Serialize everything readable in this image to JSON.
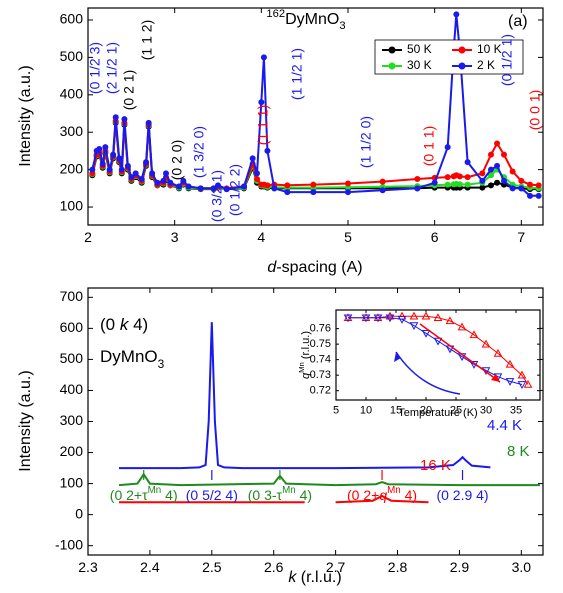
{
  "chart_data": [
    {
      "type": "line",
      "panel_label": "(a)",
      "title_parts": [
        "162",
        "DyMnO",
        "3"
      ],
      "ylabel": "Intensity (a.u.)",
      "xlabel_parts": [
        "d",
        "-spacing (A)"
      ],
      "xlim": [
        2,
        7.25
      ],
      "xticks": [
        2,
        3,
        4,
        5,
        6,
        7
      ],
      "ylim": [
        52,
        632
      ],
      "yticks": [
        100,
        200,
        300,
        400,
        500,
        600
      ],
      "x": [
        2.05,
        2.1,
        2.13,
        2.17,
        2.2,
        2.25,
        2.29,
        2.32,
        2.36,
        2.39,
        2.42,
        2.46,
        2.5,
        2.55,
        2.62,
        2.67,
        2.7,
        2.74,
        2.8,
        2.87,
        2.9,
        2.95,
        3.05,
        3.1,
        3.16,
        3.3,
        3.45,
        3.5,
        3.6,
        3.8,
        3.9,
        3.95,
        4.0,
        4.03,
        4.07,
        4.15,
        4.3,
        4.6,
        5.0,
        5.4,
        5.8,
        6.0,
        6.15,
        6.22,
        6.25,
        6.29,
        6.38,
        6.55,
        6.65,
        6.72,
        6.8,
        6.9,
        7.0,
        7.1,
        7.2
      ],
      "series": [
        {
          "name": "50 K",
          "color": "#000000",
          "values": [
            185,
            235,
            240,
            205,
            245,
            190,
            230,
            325,
            220,
            190,
            320,
            200,
            170,
            180,
            165,
            210,
            315,
            180,
            158,
            160,
            172,
            158,
            150,
            160,
            150,
            148,
            148,
            152,
            148,
            150,
            205,
            165,
            155,
            155,
            152,
            150,
            150,
            150,
            150,
            150,
            150,
            152,
            152,
            152,
            152,
            152,
            152,
            152,
            158,
            165,
            160,
            152,
            150,
            148,
            148
          ]
        },
        {
          "name": "10 K",
          "color": "#ff0000",
          "values": [
            190,
            240,
            245,
            210,
            250,
            195,
            235,
            330,
            225,
            195,
            325,
            205,
            175,
            185,
            170,
            215,
            320,
            185,
            160,
            165,
            180,
            160,
            155,
            165,
            155,
            150,
            150,
            155,
            150,
            155,
            215,
            175,
            160,
            160,
            158,
            160,
            158,
            160,
            163,
            168,
            175,
            178,
            180,
            182,
            185,
            182,
            180,
            190,
            240,
            270,
            240,
            195,
            170,
            160,
            158
          ]
        },
        {
          "name": "30 K",
          "color": "#22dd22",
          "values": [
            188,
            238,
            243,
            208,
            248,
            193,
            233,
            328,
            223,
            193,
            323,
            203,
            173,
            183,
            168,
            213,
            318,
            183,
            159,
            163,
            176,
            159,
            152,
            162,
            152,
            149,
            149,
            153,
            149,
            152,
            210,
            170,
            158,
            157,
            154,
            153,
            152,
            152,
            153,
            154,
            156,
            158,
            160,
            161,
            162,
            161,
            160,
            165,
            185,
            200,
            180,
            160,
            155,
            152,
            150
          ]
        },
        {
          "name": "2 K",
          "color": "#1a1aee",
          "values": [
            200,
            250,
            255,
            215,
            260,
            200,
            240,
            340,
            230,
            200,
            335,
            210,
            180,
            190,
            175,
            220,
            325,
            190,
            165,
            170,
            190,
            165,
            155,
            170,
            155,
            150,
            150,
            158,
            148,
            155,
            230,
            190,
            380,
            500,
            250,
            150,
            140,
            140,
            140,
            145,
            150,
            165,
            260,
            520,
            615,
            520,
            220,
            170,
            200,
            210,
            170,
            150,
            150,
            130,
            130
          ]
        }
      ],
      "annotations": [
        {
          "text": "(0 1/2 3)",
          "color": "#1a1aee"
        },
        {
          "text": "(2 1/2 1)",
          "color": "#1a1aee"
        },
        {
          "text": "(0 2 1)",
          "color": "#000000"
        },
        {
          "text": "(1 1 2)",
          "color": "#000000"
        },
        {
          "text": "(0 2 0)",
          "color": "#000000"
        },
        {
          "text": "(1 3/2 0)",
          "color": "#1a1aee"
        },
        {
          "text": "(0 3/2 1)",
          "color": "#1a1aee"
        },
        {
          "text": "(0 1/2 2)",
          "color": "#1a1aee"
        },
        {
          "text": "(1 1 1)",
          "color": "#ff0000"
        },
        {
          "text": "(1 1/2 1)",
          "color": "#1a1aee"
        },
        {
          "text": "(1 1/2 0)",
          "color": "#1a1aee"
        },
        {
          "text": "(0 1 1)",
          "color": "#ff0000"
        },
        {
          "text": "(0 1/2 1)",
          "color": "#1a1aee"
        },
        {
          "text": "(0 0 1)",
          "color": "#ff0000"
        }
      ]
    },
    {
      "type": "line",
      "panel_label": "(b)",
      "index_parts": [
        "(0 ",
        "k",
        " 4)"
      ],
      "compound_parts": [
        "DyMnO",
        "3"
      ],
      "ylabel": "Intensity (a.u.)",
      "xlabel_parts": [
        "k",
        " (r.l.u.)"
      ],
      "xlim": [
        2.3,
        3.035
      ],
      "xticks": [
        2.3,
        2.4,
        2.5,
        2.6,
        2.7,
        2.8,
        2.9,
        {
          "value": 3,
          "label": "3.0"
        }
      ],
      "ylim": [
        -130,
        730
      ],
      "yticks": [
        -100,
        0,
        100,
        200,
        300,
        400,
        500,
        600,
        700
      ],
      "series": [
        {
          "name": "4.4 K",
          "color": "#1a1aee",
          "x": [
            2.35,
            2.45,
            2.48,
            2.49,
            2.495,
            2.5,
            2.505,
            2.51,
            2.52,
            2.55,
            2.7,
            2.85,
            2.89,
            2.9,
            2.905,
            2.91,
            2.92,
            2.95
          ],
          "values": [
            150,
            150,
            152,
            160,
            300,
            620,
            300,
            160,
            152,
            150,
            150,
            152,
            160,
            175,
            185,
            175,
            158,
            152
          ]
        },
        {
          "name": "8 K",
          "color": "#1e8a1e",
          "x": [
            2.35,
            2.38,
            2.39,
            2.4,
            2.45,
            2.6,
            2.61,
            2.62,
            2.7,
            2.765,
            2.775,
            2.785,
            2.9,
            3.03
          ],
          "values": [
            95,
            100,
            130,
            100,
            95,
            100,
            125,
            100,
            95,
            98,
            105,
            98,
            95,
            95
          ]
        },
        {
          "name": "16 K",
          "color": "#ff0000",
          "x": [
            2.35,
            2.5,
            2.65,
            2.675,
            2.7,
            2.76,
            2.775,
            2.79,
            2.85
          ],
          "values": [
            40,
            40,
            40,
            null,
            40,
            45,
            60,
            45,
            40
          ]
        }
      ],
      "annotations": [
        {
          "parts": [
            "(0 2+τ",
            "Mn",
            " 4)"
          ],
          "color": "#1e8a1e",
          "x": 2.39
        },
        {
          "parts": [
            "(0 5/2 4)"
          ],
          "color": "#1a1aee",
          "x": 2.5
        },
        {
          "parts": [
            "(0 3-τ",
            "Mn",
            " 4)"
          ],
          "color": "#1e8a1e",
          "x": 2.61
        },
        {
          "parts": [
            "(0 2+",
            "q",
            "Mn",
            " 4)"
          ],
          "color": "#ff0000",
          "x": 2.775
        },
        {
          "parts": [
            "(0 2.9 4)"
          ],
          "color": "#1a1aee",
          "x": 2.905
        }
      ]
    },
    {
      "type": "scatter",
      "ylabel_parts": [
        "q",
        "Mn",
        " (r.l.u.)"
      ],
      "xlabel": "Temperature (K)",
      "xlim": [
        5,
        39
      ],
      "xticks": [
        5,
        10,
        15,
        20,
        25,
        30,
        35
      ],
      "ylim": [
        0.714,
        0.772
      ],
      "yticks": [
        0.72,
        0.73,
        0.74,
        0.75,
        0.76
      ],
      "series": [
        {
          "color": "#ff0000",
          "x": [
            7,
            10,
            12,
            14,
            16,
            18,
            20,
            22,
            24,
            26,
            28,
            30,
            32,
            34,
            36,
            37
          ],
          "values": [
            0.767,
            0.767,
            0.767,
            0.768,
            0.768,
            0.768,
            0.768,
            0.767,
            0.765,
            0.761,
            0.756,
            0.75,
            0.744,
            0.737,
            0.73,
            0.724
          ]
        },
        {
          "color": "#1a1aee",
          "x": [
            7,
            10,
            12,
            14,
            16,
            18,
            20,
            22,
            24,
            26,
            28,
            30,
            32,
            34,
            36
          ],
          "values": [
            0.767,
            0.767,
            0.767,
            0.767,
            0.766,
            0.762,
            0.757,
            0.752,
            0.747,
            0.742,
            0.737,
            0.733,
            0.729,
            0.726,
            0.724
          ]
        }
      ]
    }
  ]
}
